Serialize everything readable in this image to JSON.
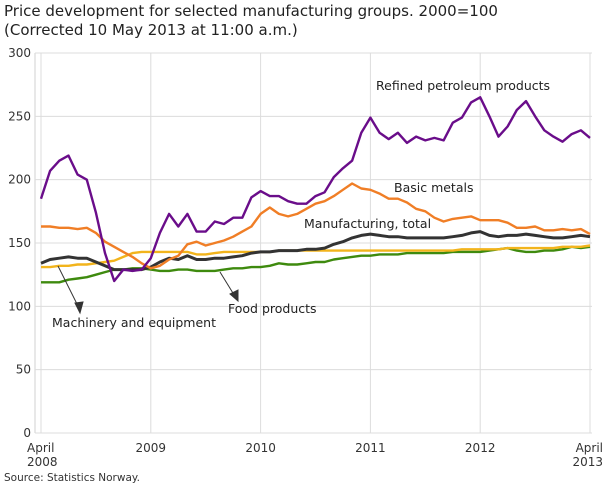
{
  "chart_data": {
    "type": "line",
    "title": "Price development for selected manufacturing groups. 2000=100",
    "subtitle": "(Corrected 10 May 2013 at 11:00 a.m.)",
    "source": "Source: Statistics Norway.",
    "x_range": [
      "April 2008",
      "April 2013"
    ],
    "x_step": "month",
    "x_ticks": [
      {
        "index": 0,
        "line1": "April",
        "line2": "2008"
      },
      {
        "index": 12,
        "line1": "2009",
        "line2": ""
      },
      {
        "index": 24,
        "line1": "2010",
        "line2": ""
      },
      {
        "index": 36,
        "line1": "2011",
        "line2": ""
      },
      {
        "index": 48,
        "line1": "2012",
        "line2": ""
      },
      {
        "index": 60,
        "line1": "April",
        "line2": "2013"
      }
    ],
    "ylim": [
      0,
      300
    ],
    "y_ticks": [
      0,
      50,
      100,
      150,
      200,
      250,
      300
    ],
    "grid": true,
    "legend": "inline labels",
    "series": [
      {
        "name": "Refined petroleum products",
        "color": "#6a0d8a",
        "values": [
          185,
          207,
          215,
          219,
          204,
          200,
          174,
          142,
          120,
          129,
          128,
          129,
          138,
          158,
          173,
          163,
          173,
          159,
          159,
          167,
          165,
          170,
          170,
          186,
          191,
          187,
          187,
          183,
          181,
          181,
          187,
          190,
          202,
          209,
          215,
          237,
          249,
          237,
          232,
          237,
          229,
          234,
          231,
          233,
          231,
          245,
          249,
          261,
          265,
          250,
          234,
          242,
          255,
          262,
          250,
          239,
          234,
          230,
          236,
          239,
          233
        ]
      },
      {
        "name": "Basic metals",
        "color": "#f07e26",
        "values": [
          163,
          163,
          162,
          162,
          161,
          162,
          158,
          151,
          147,
          143,
          139,
          134,
          130,
          132,
          137,
          140,
          149,
          151,
          148,
          150,
          152,
          155,
          159,
          163,
          173,
          178,
          173,
          171,
          173,
          177,
          181,
          183,
          187,
          192,
          197,
          193,
          192,
          189,
          185,
          185,
          182,
          177,
          175,
          170,
          167,
          169,
          170,
          171,
          168,
          168,
          168,
          166,
          162,
          162,
          163,
          160,
          160,
          161,
          160,
          161,
          157
        ]
      },
      {
        "name": "Manufacturing, total",
        "color": "#333333",
        "values": [
          134,
          137,
          138,
          139,
          138,
          138,
          135,
          132,
          129,
          129,
          129,
          129,
          131,
          135,
          138,
          137,
          140,
          137,
          137,
          138,
          138,
          139,
          140,
          142,
          143,
          143,
          144,
          144,
          144,
          145,
          145,
          146,
          149,
          151,
          154,
          156,
          157,
          156,
          155,
          155,
          154,
          154,
          154,
          154,
          154,
          155,
          156,
          158,
          159,
          156,
          155,
          156,
          156,
          157,
          156,
          155,
          154,
          154,
          155,
          156,
          155
        ]
      },
      {
        "name": "Machinery and equipment",
        "color": "#f2b41c",
        "values": [
          131,
          131,
          132,
          132,
          133,
          133,
          134,
          135,
          136,
          139,
          142,
          143,
          143,
          143,
          143,
          143,
          143,
          141,
          141,
          142,
          143,
          143,
          143,
          143,
          143,
          143,
          144,
          144,
          144,
          144,
          144,
          144,
          144,
          144,
          144,
          144,
          144,
          144,
          144,
          144,
          144,
          144,
          144,
          144,
          144,
          144,
          145,
          145,
          145,
          145,
          145,
          146,
          146,
          146,
          146,
          146,
          146,
          147,
          147,
          147,
          148
        ]
      },
      {
        "name": "Food products",
        "color": "#3e8a0e",
        "values": [
          119,
          119,
          119,
          121,
          122,
          123,
          125,
          127,
          129,
          129,
          130,
          130,
          129,
          128,
          128,
          129,
          129,
          128,
          128,
          128,
          129,
          130,
          130,
          131,
          131,
          132,
          134,
          133,
          133,
          134,
          135,
          135,
          137,
          138,
          139,
          140,
          140,
          141,
          141,
          141,
          142,
          142,
          142,
          142,
          142,
          143,
          143,
          143,
          143,
          144,
          145,
          146,
          144,
          143,
          143,
          144,
          144,
          145,
          147,
          146,
          147
        ]
      }
    ]
  }
}
